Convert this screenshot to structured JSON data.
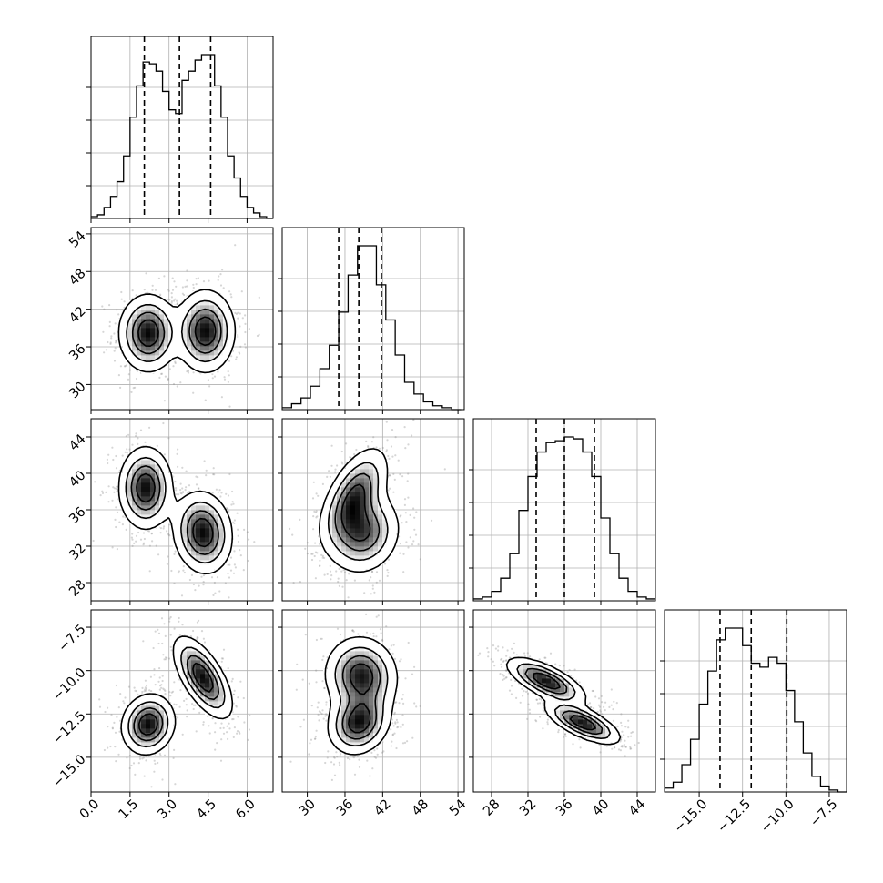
{
  "chart_data": {
    "type": "corner",
    "parameters": 4,
    "grid": true,
    "quantile_lines": "dashed",
    "histograms": [
      {
        "param": 0,
        "range": [
          0,
          7
        ],
        "xticks": [
          0.0,
          1.5,
          3.0,
          4.5,
          6.0
        ],
        "xtick_labels": [
          "0.0",
          "1.5",
          "3.0",
          "4.5",
          "6.0"
        ],
        "quantiles": [
          2.05,
          3.4,
          4.6
        ],
        "bins": [
          0.0,
          0.25,
          0.5,
          0.75,
          1.0,
          1.25,
          1.5,
          1.75,
          2.0,
          2.25,
          2.5,
          2.75,
          3.0,
          3.25,
          3.5,
          3.75,
          4.0,
          4.25,
          4.5,
          4.75,
          5.0,
          5.25,
          5.5,
          5.75,
          6.0,
          6.25,
          6.5,
          6.75,
          7.0
        ],
        "counts": [
          0.01,
          0.02,
          0.06,
          0.12,
          0.2,
          0.34,
          0.55,
          0.72,
          0.85,
          0.84,
          0.8,
          0.69,
          0.59,
          0.57,
          0.75,
          0.8,
          0.86,
          0.89,
          0.89,
          0.72,
          0.55,
          0.34,
          0.22,
          0.12,
          0.06,
          0.03,
          0.01,
          0.0
        ]
      },
      {
        "param": 1,
        "range": [
          26,
          55
        ],
        "xticks": [
          30,
          36,
          42,
          48,
          54
        ],
        "xtick_labels": [
          "30",
          "36",
          "42",
          "48",
          "54"
        ],
        "quantiles": [
          35.0,
          38.2,
          41.8
        ],
        "bins": [
          26,
          27.5,
          29,
          30.5,
          32,
          33.5,
          35,
          36.5,
          38,
          39.5,
          41,
          42.5,
          44,
          45.5,
          47,
          48.5,
          50,
          51.5,
          53,
          54.5
        ],
        "counts": [
          0.01,
          0.03,
          0.06,
          0.12,
          0.21,
          0.33,
          0.5,
          0.69,
          0.84,
          0.84,
          0.64,
          0.46,
          0.28,
          0.14,
          0.08,
          0.04,
          0.02,
          0.01,
          0.0
        ]
      },
      {
        "param": 2,
        "range": [
          26,
          46
        ],
        "xticks": [
          28,
          32,
          36,
          40,
          44
        ],
        "xtick_labels": [
          "28",
          "32",
          "36",
          "40",
          "44"
        ],
        "quantiles": [
          32.9,
          36.0,
          39.3
        ],
        "bins": [
          26,
          27,
          28,
          29,
          30,
          31,
          32,
          33,
          34,
          35,
          36,
          37,
          38,
          39,
          40,
          41,
          42,
          43,
          44,
          45,
          46
        ],
        "counts": [
          0.01,
          0.02,
          0.05,
          0.12,
          0.25,
          0.48,
          0.66,
          0.79,
          0.84,
          0.85,
          0.87,
          0.86,
          0.79,
          0.66,
          0.44,
          0.25,
          0.12,
          0.05,
          0.02,
          0.01
        ]
      },
      {
        "param": 3,
        "range": [
          -17,
          -6.5
        ],
        "xticks": [
          -15.0,
          -12.5,
          -10.0,
          -7.5
        ],
        "xtick_labels": [
          "−15.0",
          "−12.5",
          "−10.0",
          "−7.5"
        ],
        "quantiles": [
          -13.8,
          -12.0,
          -9.95
        ],
        "bins": [
          -17,
          -16.5,
          -16,
          -15.5,
          -15,
          -14.5,
          -14,
          -13.5,
          -13,
          -12.5,
          -12,
          -11.5,
          -11,
          -10.5,
          -10,
          -9.5,
          -9,
          -8.5,
          -8,
          -7.5,
          -7,
          -6.5
        ],
        "counts": [
          0.02,
          0.05,
          0.14,
          0.27,
          0.45,
          0.62,
          0.78,
          0.84,
          0.84,
          0.75,
          0.66,
          0.64,
          0.69,
          0.66,
          0.52,
          0.36,
          0.2,
          0.08,
          0.03,
          0.01,
          0.0
        ]
      }
    ],
    "pairs": [
      {
        "x_param": 0,
        "y_param": 1,
        "x_range": [
          0,
          7
        ],
        "y_range": [
          26,
          55
        ],
        "yticks": [
          30,
          36,
          42,
          48,
          54
        ],
        "ytick_labels": [
          "30",
          "36",
          "42",
          "48",
          "54"
        ],
        "modes": [
          {
            "x": 2.2,
            "y": 38.2,
            "sx": 0.55,
            "sy": 3.0,
            "rho": 0.0
          },
          {
            "x": 4.4,
            "y": 38.5,
            "sx": 0.55,
            "sy": 3.2,
            "rho": 0.0
          }
        ]
      },
      {
        "x_param": 0,
        "y_param": 2,
        "x_range": [
          0,
          7
        ],
        "y_range": [
          26,
          46
        ],
        "yticks": [
          28,
          32,
          36,
          40,
          44
        ],
        "ytick_labels": [
          "28",
          "32",
          "36",
          "40",
          "44"
        ],
        "modes": [
          {
            "x": 2.1,
            "y": 38.4,
            "sx": 0.5,
            "sy": 2.2,
            "rho": 0.0
          },
          {
            "x": 4.3,
            "y": 33.5,
            "sx": 0.55,
            "sy": 2.2,
            "rho": -0.1
          }
        ]
      },
      {
        "x_param": 1,
        "y_param": 2,
        "x_range": [
          26,
          55
        ],
        "y_range": [
          26,
          46
        ],
        "modes": [
          {
            "x": 37.6,
            "y": 37.6,
            "sx": 2.6,
            "sy": 2.6,
            "rho": 0.55
          },
          {
            "x": 38.8,
            "y": 33.5,
            "sx": 2.9,
            "sy": 2.2,
            "rho": 0.1
          }
        ]
      },
      {
        "x_param": 0,
        "y_param": 3,
        "x_range": [
          0,
          7
        ],
        "y_range": [
          -17,
          -6.5
        ],
        "yticks": [
          -15.0,
          -12.5,
          -10.0,
          -7.5
        ],
        "ytick_labels": [
          "−15.0",
          "−12.5",
          "−10.0",
          "−7.5"
        ],
        "modes": [
          {
            "x": 2.2,
            "y": -13.1,
            "sx": 0.5,
            "sy": 0.85,
            "rho": 0.1
          },
          {
            "x": 4.3,
            "y": -10.4,
            "sx": 0.55,
            "sy": 1.15,
            "rho": -0.65
          }
        ]
      },
      {
        "x_param": 1,
        "y_param": 3,
        "x_range": [
          26,
          55
        ],
        "y_range": [
          -17,
          -6.5
        ],
        "modes": [
          {
            "x": 38.2,
            "y": -13.0,
            "sx": 2.4,
            "sy": 0.9,
            "rho": 0.15
          },
          {
            "x": 38.6,
            "y": -10.3,
            "sx": 2.8,
            "sy": 1.1,
            "rho": -0.05
          }
        ]
      },
      {
        "x_param": 2,
        "y_param": 3,
        "x_range": [
          26,
          46
        ],
        "y_range": [
          -17,
          -6.5
        ],
        "modes": [
          {
            "x": 38.0,
            "y": -13.0,
            "sx": 2.0,
            "sy": 0.6,
            "rho": -0.7
          },
          {
            "x": 34.0,
            "y": -10.6,
            "sx": 2.1,
            "sy": 0.65,
            "rho": -0.7
          }
        ]
      }
    ]
  }
}
